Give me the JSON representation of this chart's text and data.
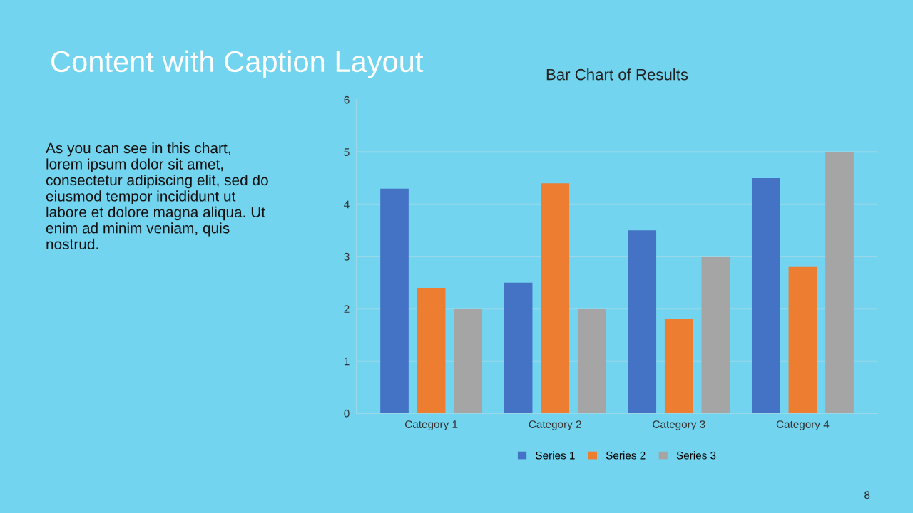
{
  "chart_data": {
    "type": "bar",
    "title": "Bar Chart of Results",
    "categories": [
      "Category 1",
      "Category 2",
      "Category 3",
      "Category 4"
    ],
    "series": [
      {
        "name": "Series 1",
        "color": "#4472c4",
        "values": [
          4.3,
          2.5,
          3.5,
          4.5
        ]
      },
      {
        "name": "Series 2",
        "color": "#ed7d31",
        "values": [
          2.4,
          4.4,
          1.8,
          2.8
        ]
      },
      {
        "name": "Series 3",
        "color": "#a5a5a5",
        "values": [
          2,
          2,
          3,
          5
        ]
      }
    ],
    "ylim": [
      0,
      6
    ],
    "yticks": [
      0,
      1,
      2,
      3,
      4,
      5,
      6
    ],
    "grid": "y",
    "legend": "bottom",
    "annotations": [
      "Content with Caption Layout",
      "As you can see in this chart,\nlorem ipsum dolor sit amet,\nconsectetur adipiscing elit, sed do\neiusmod tempor incididunt ut\nlabore et dolore magna aliqua. Ut\nenim ad minim veniam, quis\nnostrud.",
      "8"
    ]
  }
}
